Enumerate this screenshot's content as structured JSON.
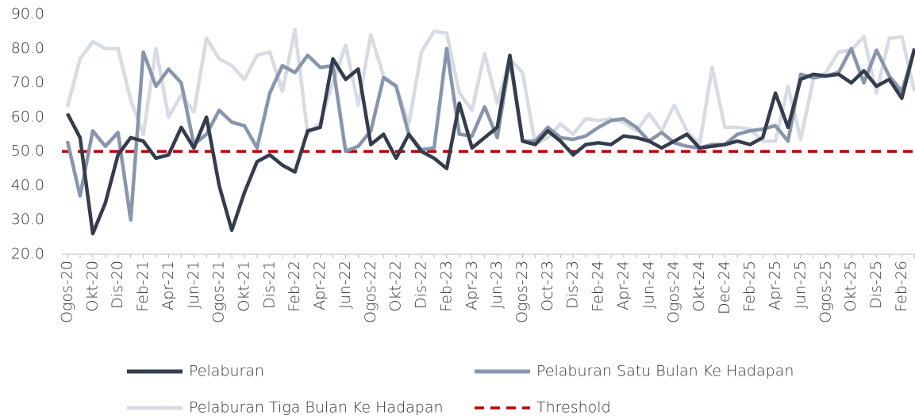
{
  "chart_data": {
    "type": "line",
    "categories": [
      "Ogos-20",
      null,
      "Okt-20",
      null,
      "Dis-20",
      null,
      "Feb-21",
      null,
      "Apr-21",
      null,
      "Jun-21",
      null,
      "Ogos-21",
      null,
      "Okt-21",
      null,
      "Dis-21",
      null,
      "Feb-22",
      null,
      "Apr-22",
      null,
      "Jun-22",
      null,
      "Ogos-22",
      null,
      "Okt-22",
      null,
      "Dis-22",
      null,
      "Feb-23",
      null,
      "Apr-23",
      null,
      "Jun-23",
      null,
      "Ogos-23",
      null,
      "Oct-23",
      null,
      "Dis-23",
      null,
      "Feb-24",
      null,
      "Apr-24",
      null,
      "Jun-24",
      null,
      "Ogos-24",
      null,
      "Okt-24",
      null,
      "Dec-24",
      null,
      "Feb-25",
      null,
      "Apr-25",
      null,
      "Jun-25",
      null,
      "Ogos-25",
      null,
      "Okt-25",
      null,
      "Dis-25",
      null,
      "Feb-26",
      null
    ],
    "series": [
      {
        "name": "Pelaburan",
        "color": "#333d4c",
        "values": [
          61,
          54,
          26,
          35,
          49,
          54,
          53,
          48,
          49,
          57,
          51,
          60,
          40,
          27,
          38,
          47,
          49,
          46,
          44,
          56,
          57,
          77,
          71,
          74,
          52,
          55,
          48,
          55,
          50,
          48,
          45,
          64,
          51,
          54,
          57,
          78,
          53,
          52,
          56,
          53,
          49,
          52,
          52.5,
          52,
          54.5,
          54,
          53,
          51,
          53,
          55,
          51,
          51.5,
          52,
          53,
          52,
          54,
          67,
          57,
          71,
          72.5,
          72,
          72.5,
          70,
          73.5,
          69,
          71,
          65.5,
          80
        ]
      },
      {
        "name": "Pelaburan Satu Bulan Ke Hadapan",
        "color": "#8796ad",
        "values": [
          53,
          37,
          56,
          51.5,
          55.5,
          30,
          79,
          69,
          74,
          70,
          52,
          55,
          62,
          58.5,
          57.5,
          51,
          67,
          75,
          73,
          78,
          74.5,
          75,
          50,
          51.5,
          56,
          71.5,
          69,
          55,
          50.5,
          51,
          80,
          55,
          54.5,
          63,
          54,
          77,
          53,
          53,
          57,
          54,
          53.5,
          54.5,
          57,
          59,
          59.5,
          57,
          53,
          55.5,
          52.5,
          51.5,
          51,
          52,
          52,
          55,
          56,
          56.5,
          57.5,
          53,
          72.5,
          71.5,
          72,
          73,
          80,
          70,
          79.5,
          72,
          67.5,
          79.5
        ]
      },
      {
        "name": "Pelaburan Tiga Bulan Ke Hadapan",
        "color": "#d7dce4",
        "values": [
          63,
          77,
          82,
          80,
          80,
          65,
          55,
          80,
          60,
          66.5,
          61.5,
          83,
          77,
          75,
          71,
          78,
          79,
          67.5,
          85.5,
          55,
          58.5,
          70,
          81,
          63.5,
          84,
          72,
          69,
          58,
          79,
          85,
          84.5,
          67,
          62,
          78.5,
          64,
          77,
          73,
          52,
          54,
          58,
          55,
          59.5,
          59,
          59.5,
          58.5,
          56,
          61,
          56,
          63.5,
          56,
          52,
          74.5,
          57,
          57,
          56.5,
          53,
          53,
          69,
          53.5,
          71,
          73,
          79,
          79.5,
          83.5,
          67,
          83,
          83.5,
          67.5
        ]
      }
    ],
    "threshold": {
      "name": "Threshold",
      "value": 50,
      "color": "#c00000"
    },
    "ylim": [
      20,
      90
    ],
    "yticks": [
      {
        "value": 20,
        "label": "20.0"
      },
      {
        "value": 30,
        "label": "30.0"
      },
      {
        "value": 40,
        "label": "40.0"
      },
      {
        "value": 50,
        "label": "50.0"
      },
      {
        "value": 60,
        "label": "60.0"
      },
      {
        "value": 70,
        "label": "70.0"
      },
      {
        "value": 80,
        "label": "80.0"
      },
      {
        "value": 90,
        "label": "90.0"
      }
    ],
    "grid": false
  }
}
